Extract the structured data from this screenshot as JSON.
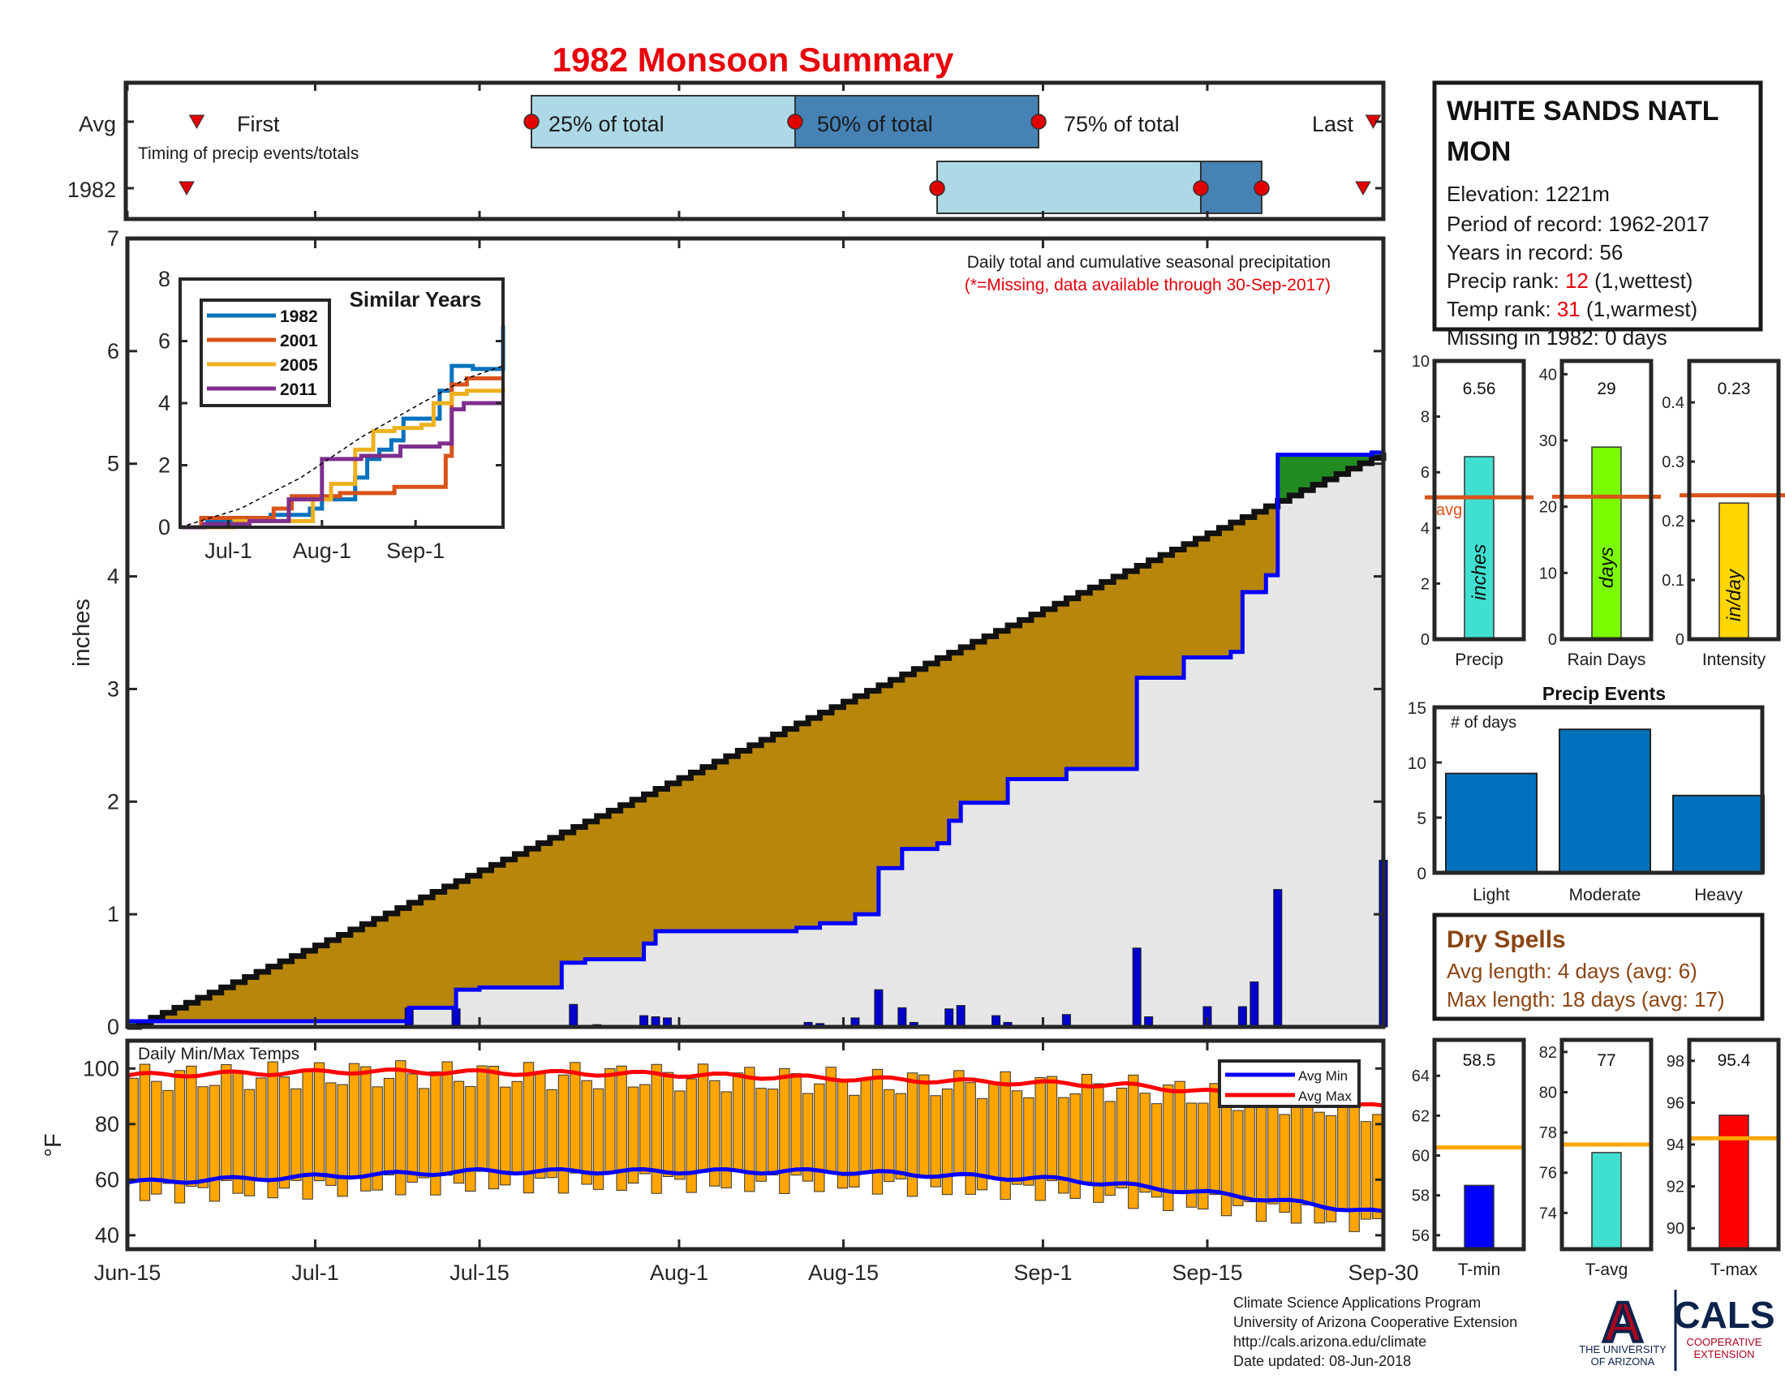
{
  "page": {
    "title": "1982 Monsoon Summary"
  },
  "timing": {
    "caption": "Timing of precip events/totals",
    "rows": [
      "Avg",
      "1982"
    ],
    "first_label": "First",
    "last_label": "Last",
    "q25_label": "25% of total",
    "q50_label": "50% of total",
    "q75_label": "75% of total",
    "avg": {
      "first": 7,
      "q25": 40,
      "q50": 66,
      "q75": 90,
      "last": 123
    },
    "year": {
      "first": 6,
      "q25": 80,
      "q50": 106,
      "q75": 112,
      "last": 122
    },
    "colors": {
      "light": "#add8e6",
      "dark": "#4682b4",
      "marker": "#e00000"
    }
  },
  "station": {
    "name": "WHITE SANDS NATL MON",
    "elevation": "Elevation: 1221m",
    "period": "Period of record: 1962-2017",
    "years": "Years in record: 56",
    "precip_rank_prefix": "Precip rank: ",
    "precip_rank_value": "12",
    "precip_rank_suffix": " (1,wettest)",
    "temp_rank_prefix": "Temp rank: ",
    "temp_rank_value": "31",
    "temp_rank_suffix": " (1,warmest)",
    "missing": "Missing in 1982: 0 days"
  },
  "main_chart": {
    "caption": "Daily total and cumulative seasonal precipitation",
    "missing_note": "(*=Missing, data available through 30-Sep-2017)",
    "ylabel": "inches"
  },
  "similar_years": {
    "title": "Similar Years"
  },
  "summary_bars": [
    {
      "name": "precip",
      "value_text": "6.56",
      "label": "Precip",
      "unit": "inches",
      "avg_label": "avg"
    },
    {
      "name": "raindays",
      "value_text": "29",
      "label": "Rain Days",
      "unit": "days"
    },
    {
      "name": "intensity",
      "value_text": "0.23",
      "label": "Intensity",
      "unit": "in/day"
    }
  ],
  "precip_events": {
    "title": "Precip Events",
    "ylabel": "# of days"
  },
  "dry_spells": {
    "title": "Dry Spells",
    "avg_length": "Avg length: 4 days (avg: 6)",
    "max_length": "Max length: 18 days (avg: 17)",
    "color": "#8b4513"
  },
  "temps": {
    "caption": "Daily Min/Max Temps",
    "ylabel": "°F",
    "legend_min": "Avg Min",
    "legend_max": "Avg Max"
  },
  "temp_summary": [
    {
      "name": "tmin",
      "value_text": "58.5",
      "label": "T-min"
    },
    {
      "name": "tavg",
      "value_text": "77",
      "label": "T-avg"
    },
    {
      "name": "tmax",
      "value_text": "95.4",
      "label": "T-max"
    }
  ],
  "footer": {
    "line1": "Climate Science Applications Program",
    "line2": "University of Arizona Cooperative Extension",
    "line3": "http://cals.arizona.edu/climate",
    "line4": " Date updated: 08-Jun-2018"
  },
  "logos": {
    "ua_line1": "THE UNIVERSITY",
    "ua_line2": "OF ARIZONA",
    "cals": "CALS",
    "cals_line1": "COOPERATIVE",
    "cals_line2": "EXTENSION",
    "ua_letter": "A"
  },
  "chart_data": [
    {
      "type": "area",
      "name": "Cumulative and daily precipitation",
      "x_start": "Jun-15",
      "x_end": "Sep-30",
      "xticks": [
        "Jun-15",
        "Jul-1",
        "Jul-15",
        "Aug-1",
        "Aug-15",
        "Sep-1",
        "Sep-15",
        "Sep-30"
      ],
      "xtick_days": [
        0,
        16,
        30,
        47,
        61,
        78,
        92,
        107
      ],
      "ylim": [
        0,
        7
      ],
      "yticks": [
        0,
        1,
        2,
        3,
        4,
        5,
        6,
        7
      ],
      "ylabel": "inches",
      "avg_cumulative_end": 5.1,
      "cumulative_1982_steps": [
        [
          0,
          0.05
        ],
        [
          24,
          0.17
        ],
        [
          28,
          0.33
        ],
        [
          30,
          0.35
        ],
        [
          37,
          0.57
        ],
        [
          39,
          0.6
        ],
        [
          44,
          0.74
        ],
        [
          45,
          0.85
        ],
        [
          57,
          0.88
        ],
        [
          59,
          0.92
        ],
        [
          62,
          1.0
        ],
        [
          64,
          1.41
        ],
        [
          66,
          1.58
        ],
        [
          69,
          1.63
        ],
        [
          70,
          1.83
        ],
        [
          71,
          1.99
        ],
        [
          75,
          2.2
        ],
        [
          80,
          2.29
        ],
        [
          86,
          3.1
        ],
        [
          90,
          3.28
        ],
        [
          94,
          3.33
        ],
        [
          95,
          3.86
        ],
        [
          97,
          4.01
        ],
        [
          97.5,
          5.08
        ],
        [
          106,
          5.1
        ],
        [
          107,
          6.56
        ]
      ],
      "daily_1982": [
        [
          24,
          0.17
        ],
        [
          28,
          0.16
        ],
        [
          38,
          0.2
        ],
        [
          40,
          0.02
        ],
        [
          44,
          0.1
        ],
        [
          45,
          0.09
        ],
        [
          46,
          0.08
        ],
        [
          58,
          0.04
        ],
        [
          59,
          0.03
        ],
        [
          62,
          0.08
        ],
        [
          64,
          0.33
        ],
        [
          66,
          0.17
        ],
        [
          67,
          0.04
        ],
        [
          70,
          0.16
        ],
        [
          71,
          0.19
        ],
        [
          74,
          0.1
        ],
        [
          75,
          0.04
        ],
        [
          80,
          0.11
        ],
        [
          86,
          0.7
        ],
        [
          87,
          0.09
        ],
        [
          92,
          0.18
        ],
        [
          95,
          0.18
        ],
        [
          96,
          0.4
        ],
        [
          98,
          1.22
        ],
        [
          107,
          1.48
        ]
      ]
    },
    {
      "type": "line",
      "name": "Similar Years",
      "xticks": [
        "Jul-1",
        "Aug-1",
        "Sep-1"
      ],
      "xtick_days": [
        16,
        47,
        78
      ],
      "ylim": [
        0,
        8
      ],
      "yticks": [
        0,
        2,
        4,
        6,
        8
      ],
      "series": [
        {
          "name": "1982",
          "color": "#0072bd",
          "points": [
            [
              0,
              0
            ],
            [
              9,
              0.2
            ],
            [
              30,
              0.4
            ],
            [
              43,
              0.6
            ],
            [
              47,
              0.9
            ],
            [
              58,
              1.6
            ],
            [
              62,
              2.2
            ],
            [
              66,
              2.5
            ],
            [
              70,
              2.8
            ],
            [
              74,
              3.5
            ],
            [
              80,
              3.5
            ],
            [
              86,
              4.4
            ],
            [
              90,
              5.2
            ],
            [
              96,
              5.2
            ],
            [
              97,
              5.1
            ],
            [
              106,
              5.1
            ],
            [
              107,
              6.5
            ]
          ]
        },
        {
          "name": "2001",
          "color": "#d95319",
          "points": [
            [
              0,
              0
            ],
            [
              7,
              0.3
            ],
            [
              26,
              0.3
            ],
            [
              31,
              0.6
            ],
            [
              37,
              1.0
            ],
            [
              53,
              1.1
            ],
            [
              71,
              1.3
            ],
            [
              84,
              1.3
            ],
            [
              88,
              2.3
            ],
            [
              90,
              4.6
            ],
            [
              95,
              4.8
            ],
            [
              107,
              4.8
            ]
          ]
        },
        {
          "name": "2005",
          "color": "#edb120",
          "points": [
            [
              0,
              0
            ],
            [
              18,
              0.2
            ],
            [
              30,
              0.2
            ],
            [
              44,
              0.9
            ],
            [
              50,
              1.4
            ],
            [
              58,
              2.5
            ],
            [
              64,
              3.1
            ],
            [
              71,
              3.2
            ],
            [
              80,
              3.3
            ],
            [
              84,
              4.0
            ],
            [
              90,
              4.3
            ],
            [
              95,
              4.4
            ],
            [
              107,
              4.5
            ]
          ]
        },
        {
          "name": "2011",
          "color": "#7e2f8e",
          "points": [
            [
              0,
              0
            ],
            [
              8,
              0.1
            ],
            [
              23,
              0.2
            ],
            [
              36,
              0.9
            ],
            [
              47,
              2.2
            ],
            [
              60,
              2.3
            ],
            [
              73,
              2.6
            ],
            [
              86,
              2.7
            ],
            [
              90,
              3.8
            ],
            [
              94,
              4.0
            ],
            [
              107,
              4.0
            ]
          ]
        },
        {
          "name": "avg",
          "color": "#000000",
          "points": [
            [
              0,
              0
            ],
            [
              20,
              0.6
            ],
            [
              40,
              1.6
            ],
            [
              60,
              2.9
            ],
            [
              80,
              4.0
            ],
            [
              95,
              4.8
            ],
            [
              107,
              5.2
            ]
          ]
        }
      ]
    },
    {
      "type": "bar",
      "name": "Seasonal totals vs average",
      "panels": [
        {
          "label": "Precip",
          "value": 6.56,
          "avg": 5.1,
          "ylim": [
            0,
            10
          ],
          "yticks": [
            0,
            2,
            4,
            6,
            8,
            10
          ],
          "color": "#40e0d0"
        },
        {
          "label": "Rain Days",
          "value": 29,
          "avg": 21.5,
          "ylim": [
            0,
            42
          ],
          "yticks": [
            0,
            10,
            20,
            30,
            40
          ],
          "color": "#7cfc00"
        },
        {
          "label": "Intensity",
          "value": 0.23,
          "avg": 0.243,
          "ylim": [
            0,
            0.47
          ],
          "yticks": [
            0,
            0.1,
            0.2,
            0.3,
            0.4
          ],
          "color": "#ffd700"
        }
      ],
      "avg_color": "#d95319"
    },
    {
      "type": "bar",
      "name": "Precip Events",
      "categories": [
        "Light",
        "Moderate",
        "Heavy"
      ],
      "values": [
        9,
        13,
        7
      ],
      "ylim": [
        0,
        15
      ],
      "yticks": [
        0,
        5,
        10,
        15
      ],
      "color": "#0072bd"
    },
    {
      "type": "bar",
      "name": "Daily Min/Max Temps",
      "ylim": [
        35,
        110
      ],
      "yticks": [
        40,
        60,
        80,
        100
      ],
      "ylabel": "°F",
      "avg_min_line": [
        [
          0,
          59
        ],
        [
          30,
          63
        ],
        [
          60,
          63
        ],
        [
          80,
          60
        ],
        [
          95,
          54
        ],
        [
          107,
          48
        ]
      ],
      "avg_max_line": [
        [
          0,
          97.5
        ],
        [
          20,
          99
        ],
        [
          45,
          98
        ],
        [
          65,
          96
        ],
        [
          85,
          94
        ],
        [
          100,
          89
        ],
        [
          107,
          86
        ]
      ],
      "colors": {
        "bars": "#ffa500",
        "avg_min": "#0000ff",
        "avg_max": "#ff0000"
      }
    },
    {
      "type": "bar",
      "name": "Seasonal temperatures vs average",
      "panels": [
        {
          "label": "T-min",
          "value": 58.5,
          "avg": 60.4,
          "ylim": [
            55.3,
            65.8
          ],
          "yticks": [
            56,
            58,
            60,
            62,
            64
          ],
          "color": "#0000ff"
        },
        {
          "label": "T-avg",
          "value": 77,
          "avg": 77.4,
          "ylim": [
            72.2,
            82.6
          ],
          "yticks": [
            74,
            76,
            78,
            80,
            82
          ],
          "color": "#40e0d0"
        },
        {
          "label": "T-max",
          "value": 95.4,
          "avg": 94.3,
          "ylim": [
            89,
            99
          ],
          "yticks": [
            90,
            92,
            94,
            96,
            98
          ],
          "color": "#ff0000"
        }
      ],
      "avg_color": "#ffa500"
    }
  ]
}
